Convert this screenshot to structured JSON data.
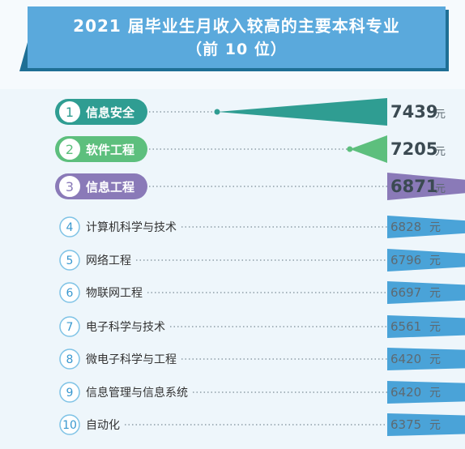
{
  "header": {
    "title": "2021 届毕业生月收入较高的主要本科专业",
    "subtitle": "（前 10 位）"
  },
  "colors": {
    "teal": "#2f9d92",
    "green": "#5dbf7d",
    "purple": "#8a7ab8",
    "blue": "#4aa3d8"
  },
  "chart_data": {
    "type": "bar",
    "unit": "元",
    "categories": [
      "信息安全",
      "软件工程",
      "信息工程",
      "计算机科学与技术",
      "网络工程",
      "物联网工程",
      "电子科学与技术",
      "微电子科学与工程",
      "信息管理与信息系统",
      "自动化"
    ],
    "ranks": [
      "1",
      "2",
      "3",
      "4",
      "5",
      "6",
      "7",
      "8",
      "9",
      "10"
    ],
    "values": [
      7439,
      7205,
      6871,
      6828,
      6796,
      6697,
      6561,
      6420,
      6420,
      6375
    ],
    "highlight_colors": [
      "#2f9d92",
      "#5dbf7d",
      "#8a7ab8"
    ]
  }
}
